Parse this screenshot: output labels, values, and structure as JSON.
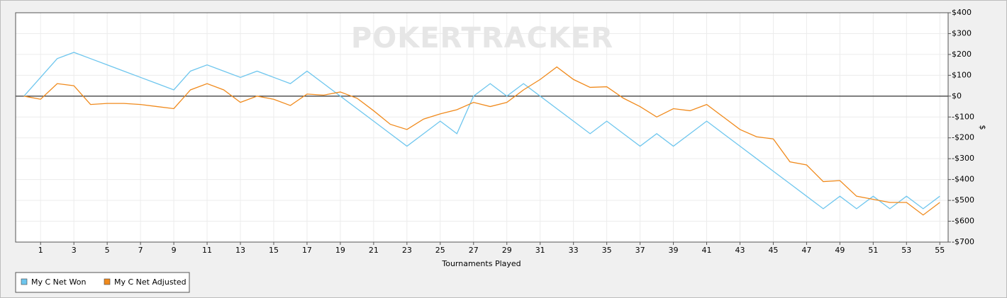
{
  "chart_data": {
    "type": "line",
    "watermark": "POKERTRACKER",
    "x_label": "Tournaments Played",
    "y_label": "$",
    "x": [
      0,
      1,
      2,
      3,
      4,
      5,
      6,
      7,
      8,
      9,
      10,
      11,
      12,
      13,
      14,
      15,
      16,
      17,
      18,
      19,
      20,
      21,
      22,
      23,
      24,
      25,
      26,
      27,
      28,
      29,
      30,
      31,
      32,
      33,
      34,
      35,
      36,
      37,
      38,
      39,
      40,
      41,
      42,
      43,
      44,
      45,
      46,
      47,
      48,
      49,
      50,
      51,
      52,
      53,
      54,
      55
    ],
    "xlim": [
      -0.5,
      55.5
    ],
    "xticks": [
      1,
      3,
      5,
      7,
      9,
      11,
      13,
      15,
      17,
      19,
      21,
      23,
      25,
      27,
      29,
      31,
      33,
      35,
      37,
      39,
      41,
      43,
      45,
      47,
      49,
      51,
      53,
      55
    ],
    "ylim": [
      -700,
      400
    ],
    "yticks": [
      {
        "value": 400,
        "label": "$400"
      },
      {
        "value": 300,
        "label": "$300"
      },
      {
        "value": 200,
        "label": "$200"
      },
      {
        "value": 100,
        "label": "$100"
      },
      {
        "value": 0,
        "label": "$0"
      },
      {
        "value": -100,
        "label": "-$100"
      },
      {
        "value": -200,
        "label": "-$200"
      },
      {
        "value": -300,
        "label": "-$300"
      },
      {
        "value": -400,
        "label": "-$400"
      },
      {
        "value": -500,
        "label": "-$500"
      },
      {
        "value": -600,
        "label": "-$600"
      },
      {
        "value": -700,
        "label": "-$700"
      }
    ],
    "grid": true,
    "legend": "bottom-left",
    "series": [
      {
        "name": "My C Net Won",
        "color": "#6ec6ee",
        "values": [
          0,
          90,
          180,
          210,
          180,
          150,
          120,
          90,
          60,
          30,
          120,
          150,
          120,
          90,
          120,
          90,
          60,
          120,
          60,
          0,
          -60,
          -120,
          -180,
          -240,
          -180,
          -120,
          -180,
          0,
          60,
          0,
          60,
          0,
          -60,
          -120,
          -180,
          -120,
          -180,
          -240,
          -180,
          -240,
          -180,
          -120,
          -180,
          -240,
          -300,
          -360,
          -420,
          -480,
          -540,
          -480,
          -540,
          -480,
          -540,
          -480,
          -540,
          -480
        ]
      },
      {
        "name": "My C Net Adjusted",
        "color": "#f08a1c",
        "values": [
          0,
          -15,
          60,
          50,
          -40,
          -35,
          -35,
          -40,
          -50,
          -60,
          30,
          60,
          30,
          -30,
          0,
          -15,
          -45,
          10,
          5,
          20,
          -10,
          -70,
          -135,
          -160,
          -110,
          -85,
          -65,
          -30,
          -50,
          -30,
          30,
          80,
          140,
          80,
          42,
          45,
          -10,
          -50,
          -100,
          -60,
          -70,
          -40,
          -100,
          -160,
          -195,
          -205,
          -315,
          -330,
          -410,
          -405,
          -480,
          -495,
          -510,
          -510,
          -570,
          -510
        ]
      }
    ]
  }
}
